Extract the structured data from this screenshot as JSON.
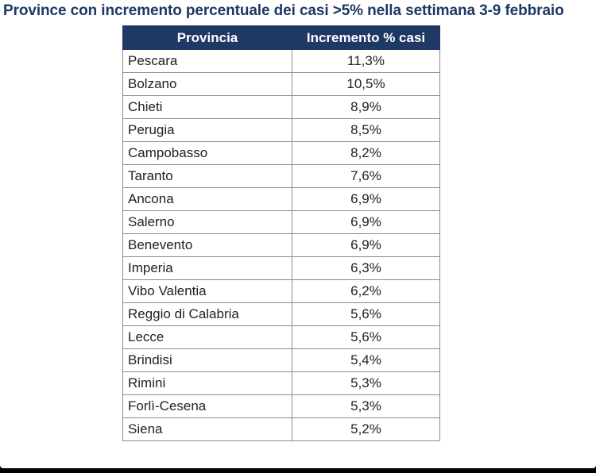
{
  "chart_data": {
    "type": "table",
    "title": "Province con incremento percentuale dei casi >5% nella settimana 3-9 febbraio",
    "columns": [
      "Provincia",
      "Incremento % casi"
    ],
    "rows": [
      {
        "provincia": "Pescara",
        "incremento": "11,3%",
        "value": 11.3
      },
      {
        "provincia": "Bolzano",
        "incremento": "10,5%",
        "value": 10.5
      },
      {
        "provincia": "Chieti",
        "incremento": "8,9%",
        "value": 8.9
      },
      {
        "provincia": "Perugia",
        "incremento": "8,5%",
        "value": 8.5
      },
      {
        "provincia": "Campobasso",
        "incremento": "8,2%",
        "value": 8.2
      },
      {
        "provincia": "Taranto",
        "incremento": "7,6%",
        "value": 7.6
      },
      {
        "provincia": "Ancona",
        "incremento": "6,9%",
        "value": 6.9
      },
      {
        "provincia": "Salerno",
        "incremento": "6,9%",
        "value": 6.9
      },
      {
        "provincia": "Benevento",
        "incremento": "6,9%",
        "value": 6.9
      },
      {
        "provincia": "Imperia",
        "incremento": "6,3%",
        "value": 6.3
      },
      {
        "provincia": "Vibo Valentia",
        "incremento": "6,2%",
        "value": 6.2
      },
      {
        "provincia": "Reggio di Calabria",
        "incremento": "5,6%",
        "value": 5.6
      },
      {
        "provincia": "Lecce",
        "incremento": "5,6%",
        "value": 5.6
      },
      {
        "provincia": "Brindisi",
        "incremento": "5,4%",
        "value": 5.4
      },
      {
        "provincia": "Rimini",
        "incremento": "5,3%",
        "value": 5.3
      },
      {
        "provincia": "Forlì-Cesena",
        "incremento": "5,3%",
        "value": 5.3
      },
      {
        "provincia": "Siena",
        "incremento": "5,2%",
        "value": 5.2
      }
    ],
    "header_color": "#1f3864",
    "title_color": "#1f3864"
  }
}
